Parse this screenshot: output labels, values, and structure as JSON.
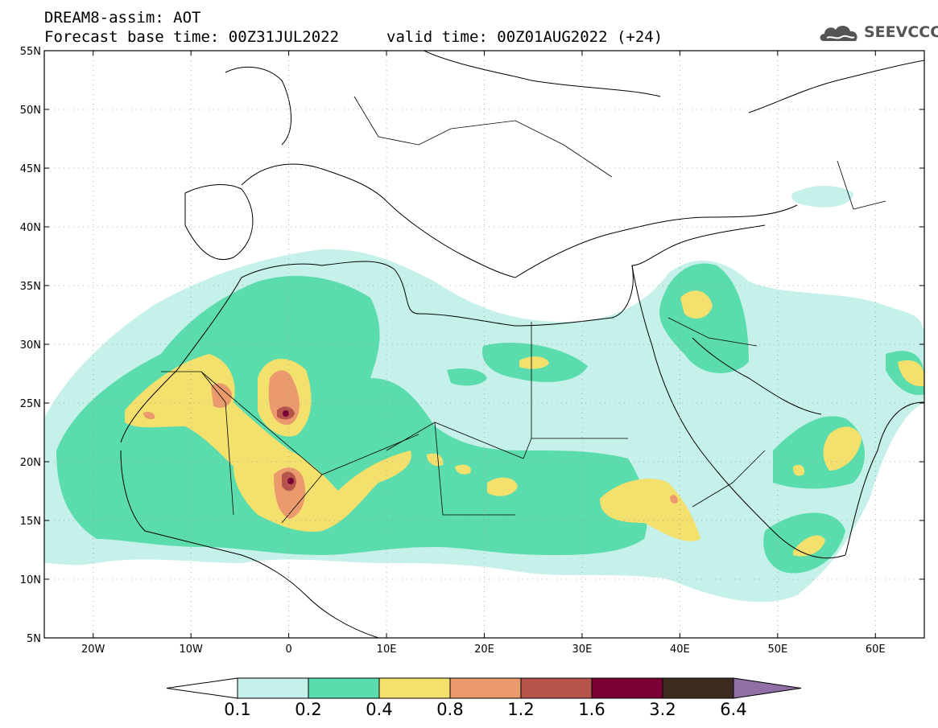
{
  "header": {
    "line1": "DREAM8-assim: AOT",
    "line2": "Forecast base time: 00Z31JUL2022",
    "line2b": "valid time: 00Z01AUG2022 (+24)",
    "logo_text": "SEEVCCC"
  },
  "map": {
    "lon_range": [
      -25,
      65
    ],
    "lat_range": [
      5,
      55
    ],
    "lon_ticks": [
      {
        "value": -20,
        "label": "20W"
      },
      {
        "value": -10,
        "label": "10W"
      },
      {
        "value": 0,
        "label": "0"
      },
      {
        "value": 10,
        "label": "10E"
      },
      {
        "value": 20,
        "label": "20E"
      },
      {
        "value": 30,
        "label": "30E"
      },
      {
        "value": 40,
        "label": "40E"
      },
      {
        "value": 50,
        "label": "50E"
      },
      {
        "value": 60,
        "label": "60E"
      }
    ],
    "lat_ticks": [
      {
        "value": 55,
        "label": "55N"
      },
      {
        "value": 50,
        "label": "50N"
      },
      {
        "value": 45,
        "label": "45N"
      },
      {
        "value": 40,
        "label": "40N"
      },
      {
        "value": 35,
        "label": "35N"
      },
      {
        "value": 30,
        "label": "30N"
      },
      {
        "value": 25,
        "label": "25N"
      },
      {
        "value": 20,
        "label": "20N"
      },
      {
        "value": 15,
        "label": "15N"
      },
      {
        "value": 10,
        "label": "10N"
      },
      {
        "value": 5,
        "label": "5N"
      }
    ],
    "grid": "dotted"
  },
  "colorbar": {
    "colors": [
      "#c6f0ea",
      "#5adcad",
      "#f3e06d",
      "#ea9a6c",
      "#b5544b",
      "#7a0033",
      "#3d2b1f"
    ],
    "under_color": "#ffffff",
    "over_color": "#9170a8",
    "labels": [
      "0.1",
      "0.2",
      "0.4",
      "0.8",
      "1.2",
      "1.6",
      "3.2",
      "6.4"
    ]
  }
}
